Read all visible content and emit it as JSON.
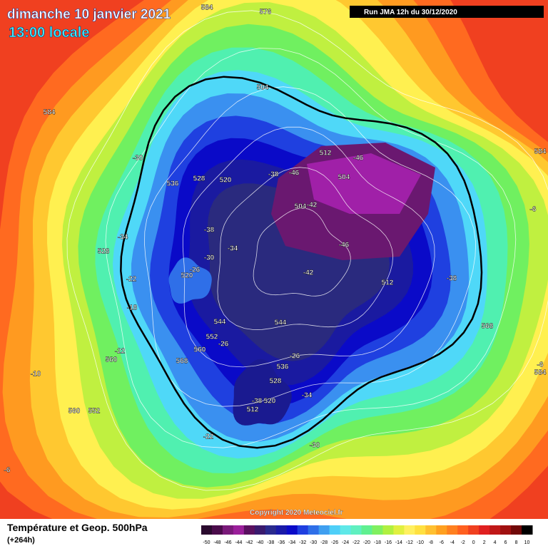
{
  "header": {
    "title": "dimanche 10 janvier 2021",
    "subtitle": "13:00 locale",
    "run": "Run JMA 12h du 30/12/2020"
  },
  "copyright": "Copyright 2020 Meteociel.fr",
  "footer": {
    "title": "Température et Geop. 500hPa",
    "lead": "(+264h)"
  },
  "colorbar": {
    "ticks": [
      -50,
      -48,
      -46,
      -44,
      -42,
      -40,
      -38,
      -36,
      -34,
      -32,
      -30,
      -28,
      -26,
      -24,
      -22,
      -20,
      -18,
      -16,
      -14,
      -12,
      -10,
      -8,
      -6,
      -4,
      -2,
      0,
      2,
      4,
      6,
      8,
      10
    ],
    "colors": [
      "#2a0a2e",
      "#4b0c4b",
      "#7a1a7a",
      "#9b1f9b",
      "#5a1060",
      "#3a1a6e",
      "#2a2a8e",
      "#1a1aa8",
      "#0a0ac8",
      "#1f3fe0",
      "#2f6fe8",
      "#3f9ff0",
      "#4fcff8",
      "#5fe8e8",
      "#60f0c0",
      "#60f090",
      "#80f060",
      "#b0f040",
      "#e0f040",
      "#fff060",
      "#ffe040",
      "#ffc030",
      "#ffa020",
      "#ff8020",
      "#ff6020",
      "#f04020",
      "#e02020",
      "#c01818",
      "#a01010",
      "#700808",
      "#000000"
    ]
  },
  "map_labels": [
    504,
    -30,
    536,
    528,
    520,
    -38,
    -46,
    512,
    -46,
    504,
    504,
    -42,
    -34,
    528,
    -38,
    -34,
    -30,
    520,
    -26,
    -22,
    -18,
    -46,
    -42,
    512,
    -38,
    544,
    544,
    552,
    -26,
    560,
    568,
    -22,
    560,
    -26,
    536,
    528,
    -34,
    -38,
    520,
    512,
    560,
    552,
    -22,
    -30,
    568,
    -10,
    584,
    584,
    -6,
    -6,
    584,
    576,
    584,
    -6
  ]
}
